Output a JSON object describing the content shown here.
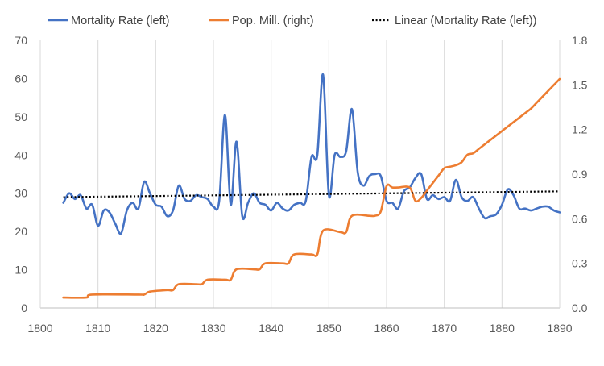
{
  "chart_data": {
    "type": "line",
    "title": "",
    "xlabel": "",
    "ylabel": "",
    "y2label": "",
    "xlim": [
      1800,
      1890
    ],
    "ylim": [
      0,
      70
    ],
    "y2lim": [
      0,
      1.8
    ],
    "x_ticks": [
      1800,
      1810,
      1820,
      1830,
      1840,
      1850,
      1860,
      1870,
      1880,
      1890
    ],
    "y_ticks": [
      0,
      10,
      20,
      30,
      40,
      50,
      60,
      70
    ],
    "y2_ticks": [
      "0.0",
      "0.3",
      "0.6",
      "0.9",
      "1.2",
      "1.5",
      "1.8"
    ],
    "grid": "vertical",
    "legend_position": "top",
    "series": [
      {
        "name": "Mortality Rate (left)",
        "axis": "left",
        "color": "#4472C4",
        "x": [
          1804,
          1805,
          1806,
          1807,
          1808,
          1809,
          1810,
          1811,
          1812,
          1813,
          1814,
          1815,
          1816,
          1817,
          1818,
          1819,
          1820,
          1821,
          1822,
          1823,
          1824,
          1825,
          1826,
          1827,
          1828,
          1829,
          1830,
          1831,
          1832,
          1833,
          1834,
          1835,
          1836,
          1837,
          1838,
          1839,
          1840,
          1841,
          1842,
          1843,
          1844,
          1845,
          1846,
          1847,
          1848,
          1849,
          1850,
          1851,
          1852,
          1853,
          1854,
          1855,
          1856,
          1857,
          1858,
          1859,
          1860,
          1861,
          1862,
          1863,
          1864,
          1865,
          1866,
          1867,
          1868,
          1869,
          1870,
          1871,
          1872,
          1873,
          1874,
          1875,
          1876,
          1877,
          1878,
          1879,
          1880,
          1881,
          1882,
          1883,
          1884,
          1885,
          1886,
          1887,
          1888,
          1889,
          1890
        ],
        "values": [
          27.5,
          30,
          28.5,
          29.5,
          26,
          27,
          21.5,
          25.5,
          25,
          22,
          19.5,
          25.5,
          27.5,
          26,
          33,
          30,
          27,
          26.5,
          24,
          25.5,
          32,
          28.5,
          28,
          29.5,
          29,
          28.5,
          26.5,
          28,
          50.5,
          27,
          43.5,
          24,
          27.5,
          30,
          27.5,
          27,
          25.5,
          27.5,
          26,
          25.5,
          27,
          27.5,
          28,
          39.5,
          40,
          61,
          29.5,
          40,
          39.5,
          41,
          52,
          35.5,
          32,
          34.5,
          35,
          34.5,
          28,
          27.5,
          26,
          30.5,
          31.5,
          34,
          35,
          28.5,
          29.5,
          28.5,
          29,
          28,
          33.5,
          29,
          28,
          29,
          26,
          23.5,
          24,
          24.5,
          27,
          31,
          29.5,
          26,
          26,
          25.5,
          26,
          26.5,
          26.5,
          25.5,
          25
        ]
      },
      {
        "name": "Pop. Mill. (right)",
        "axis": "right",
        "color": "#ED7D31",
        "x": [
          1804,
          1808,
          1809,
          1817,
          1818,
          1819,
          1822,
          1823,
          1824,
          1827,
          1828,
          1829,
          1832,
          1833,
          1834,
          1837,
          1838,
          1839,
          1842,
          1843,
          1844,
          1847,
          1848,
          1849,
          1852,
          1853,
          1854,
          1857,
          1858,
          1859,
          1860,
          1861,
          1862,
          1864,
          1865,
          1866,
          1867,
          1868,
          1869,
          1870,
          1871,
          1872,
          1873,
          1874,
          1875,
          1876,
          1877,
          1878,
          1879,
          1880,
          1881,
          1882,
          1883,
          1884,
          1885,
          1886,
          1887,
          1888,
          1889,
          1890
        ],
        "values": [
          0.07,
          0.07,
          0.09,
          0.09,
          0.09,
          0.11,
          0.12,
          0.12,
          0.16,
          0.16,
          0.16,
          0.19,
          0.19,
          0.19,
          0.26,
          0.26,
          0.26,
          0.3,
          0.3,
          0.3,
          0.36,
          0.36,
          0.36,
          0.52,
          0.51,
          0.51,
          0.62,
          0.62,
          0.62,
          0.65,
          0.82,
          0.81,
          0.81,
          0.81,
          0.72,
          0.74,
          0.79,
          0.84,
          0.89,
          0.94,
          0.95,
          0.96,
          0.98,
          1.03,
          1.04,
          1.07,
          1.1,
          1.13,
          1.16,
          1.19,
          1.22,
          1.25,
          1.28,
          1.31,
          1.34,
          1.38,
          1.42,
          1.46,
          1.5,
          1.54
        ]
      },
      {
        "name": "Linear (Mortality Rate (left))",
        "axis": "left",
        "color": "#000000",
        "style": "dotted",
        "x": [
          1804,
          1890
        ],
        "values": [
          29.0,
          30.5
        ]
      }
    ]
  }
}
